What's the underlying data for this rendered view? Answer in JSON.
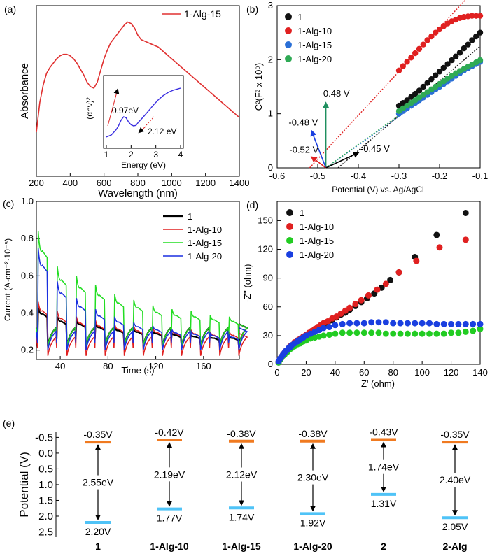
{
  "chart_data": [
    {
      "id": "a",
      "panel_label": "(a)",
      "type": "line",
      "xlabel": "Wavelength (nm)",
      "ylabel": "Absorbance",
      "xlim": [
        200,
        1400
      ],
      "xticks": [
        "200",
        "400",
        "600",
        "800",
        "1000",
        "1200",
        "1400"
      ],
      "legend": "top-right",
      "color": "#e03030",
      "series": [
        {
          "name": "1-Alg-15",
          "x": [
            200,
            220,
            240,
            260,
            280,
            300,
            320,
            340,
            360,
            380,
            400,
            420,
            440,
            460,
            480,
            500,
            520,
            540,
            560,
            580,
            600,
            620,
            640,
            660,
            680,
            700,
            720,
            740,
            760,
            780,
            800,
            820,
            840,
            860,
            880,
            900,
            920,
            940,
            960,
            980,
            1000,
            1020,
            1040,
            1060,
            1080,
            1100,
            1120,
            1140,
            1160,
            1180,
            1200,
            1220,
            1240,
            1260,
            1280,
            1300,
            1320,
            1340,
            1360,
            1380,
            1400
          ],
          "y": [
            0.3,
            0.5,
            0.62,
            0.7,
            0.74,
            0.77,
            0.8,
            0.82,
            0.83,
            0.83,
            0.82,
            0.8,
            0.77,
            0.73,
            0.69,
            0.64,
            0.61,
            0.6,
            0.64,
            0.72,
            0.8,
            0.86,
            0.91,
            0.94,
            0.97,
            1.0,
            1.03,
            1.05,
            1.04,
            1.01,
            0.96,
            0.93,
            0.92,
            0.91,
            0.9,
            0.89,
            0.88,
            0.86,
            0.84,
            0.82,
            0.8,
            0.78,
            0.76,
            0.74,
            0.72,
            0.7,
            0.68,
            0.66,
            0.64,
            0.62,
            0.6,
            0.58,
            0.56,
            0.54,
            0.52,
            0.5,
            0.48,
            0.46,
            0.44,
            0.42,
            0.4
          ]
        }
      ],
      "inset": {
        "xlabel": "Energy (eV)",
        "ylabel": "(αhν)²",
        "xlim": [
          1,
          4
        ],
        "xticks": [
          "1",
          "2",
          "3",
          "4"
        ],
        "annotations": [
          "0.97eV",
          "2.12 eV"
        ],
        "series": {
          "x": [
            1.0,
            1.2,
            1.4,
            1.5,
            1.6,
            1.7,
            1.8,
            1.9,
            2.0,
            2.1,
            2.2,
            2.3,
            2.5,
            2.7,
            2.9,
            3.1,
            3.3,
            3.5,
            3.7,
            4.0
          ],
          "y": [
            0.08,
            0.12,
            0.22,
            0.3,
            0.4,
            0.46,
            0.44,
            0.36,
            0.31,
            0.29,
            0.3,
            0.36,
            0.46,
            0.57,
            0.68,
            0.78,
            0.86,
            0.92,
            0.96,
            1.0
          ]
        }
      }
    },
    {
      "id": "b",
      "panel_label": "(b)",
      "type": "scatter",
      "xlabel": "Potential (V) vs. Ag/AgCl",
      "ylabel": "C²(F² x 10⁹)",
      "xlim": [
        -0.6,
        -0.1
      ],
      "ylim": [
        0,
        3
      ],
      "xticks": [
        "-0.6",
        "-0.5",
        "-0.4",
        "-0.3",
        "-0.2",
        "-0.1"
      ],
      "yticks": [
        "0",
        "1",
        "2",
        "3"
      ],
      "legend": "top-left",
      "annotations": [
        {
          "text": "-0.48 V",
          "color": "#1f8f5f"
        },
        {
          "text": "-0.48 V",
          "color": "#1a3fe0"
        },
        {
          "text": "-0.52 V",
          "color": "#e02020"
        },
        {
          "text": "-0.45 V",
          "color": "#000000"
        }
      ],
      "series": [
        {
          "name": "1",
          "color": "#111111",
          "intercept": -0.45,
          "x": [
            -0.3,
            -0.29,
            -0.28,
            -0.27,
            -0.26,
            -0.25,
            -0.24,
            -0.23,
            -0.22,
            -0.21,
            -0.2,
            -0.19,
            -0.18,
            -0.17,
            -0.16,
            -0.15,
            -0.14,
            -0.13,
            -0.12,
            -0.11,
            -0.1
          ],
          "y": [
            1.15,
            1.2,
            1.25,
            1.31,
            1.37,
            1.43,
            1.5,
            1.57,
            1.64,
            1.71,
            1.78,
            1.85,
            1.92,
            1.99,
            2.06,
            2.13,
            2.21,
            2.28,
            2.36,
            2.43,
            2.5
          ]
        },
        {
          "name": "1-Alg-10",
          "color": "#e02020",
          "intercept": -0.52,
          "x": [
            -0.3,
            -0.29,
            -0.28,
            -0.27,
            -0.26,
            -0.25,
            -0.24,
            -0.23,
            -0.22,
            -0.21,
            -0.2,
            -0.19,
            -0.18,
            -0.17,
            -0.16,
            -0.15,
            -0.14,
            -0.13,
            -0.12,
            -0.11,
            -0.1
          ],
          "y": [
            1.8,
            1.88,
            1.96,
            2.04,
            2.12,
            2.2,
            2.28,
            2.36,
            2.43,
            2.5,
            2.56,
            2.62,
            2.67,
            2.71,
            2.74,
            2.77,
            2.79,
            2.8,
            2.81,
            2.81,
            2.81
          ]
        },
        {
          "name": "1-Alg-15",
          "color": "#2a6fd6",
          "intercept": -0.48,
          "x": [
            -0.3,
            -0.29,
            -0.28,
            -0.27,
            -0.26,
            -0.25,
            -0.24,
            -0.23,
            -0.22,
            -0.21,
            -0.2,
            -0.19,
            -0.18,
            -0.17,
            -0.16,
            -0.15,
            -0.14,
            -0.13,
            -0.12,
            -0.11,
            -0.1
          ],
          "y": [
            1.0,
            1.05,
            1.1,
            1.15,
            1.2,
            1.25,
            1.3,
            1.35,
            1.4,
            1.45,
            1.5,
            1.55,
            1.6,
            1.65,
            1.7,
            1.75,
            1.8,
            1.84,
            1.88,
            1.92,
            1.96
          ]
        },
        {
          "name": "1-Alg-20",
          "color": "#2faa55",
          "intercept": -0.48,
          "x": [
            -0.3,
            -0.29,
            -0.28,
            -0.27,
            -0.26,
            -0.25,
            -0.24,
            -0.23,
            -0.22,
            -0.21,
            -0.2,
            -0.19,
            -0.18,
            -0.17,
            -0.16,
            -0.15,
            -0.14,
            -0.13,
            -0.12,
            -0.11,
            -0.1
          ],
          "y": [
            1.05,
            1.1,
            1.15,
            1.2,
            1.25,
            1.3,
            1.35,
            1.4,
            1.45,
            1.5,
            1.55,
            1.6,
            1.65,
            1.7,
            1.75,
            1.79,
            1.83,
            1.87,
            1.91,
            1.95,
            1.99
          ]
        }
      ]
    },
    {
      "id": "c",
      "panel_label": "(c)",
      "type": "line",
      "xlabel": "Time (s)",
      "ylabel": "Current (A·cm⁻²·10⁻⁵)",
      "xlim": [
        20,
        190
      ],
      "ylim": [
        0.15,
        1.0
      ],
      "xticks": [
        "40",
        "80",
        "120",
        "160"
      ],
      "yticks": [
        "0.2",
        "0.4",
        "0.6",
        "0.8",
        "1.0"
      ],
      "legend": "top-right",
      "period": 16,
      "on_duration": 8,
      "series": [
        {
          "name": "1",
          "color": "#000000",
          "width": 2.2,
          "off": 0.24,
          "on_peak": [
            0.43,
            0.38,
            0.36,
            0.34,
            0.32,
            0.31,
            0.3,
            0.29,
            0.28,
            0.27,
            0.27
          ]
        },
        {
          "name": "1-Alg-10",
          "color": "#e02020",
          "width": 1.5,
          "off": 0.19,
          "on_peak": [
            0.46,
            0.41,
            0.38,
            0.36,
            0.34,
            0.33,
            0.32,
            0.31,
            0.31,
            0.3,
            0.3
          ]
        },
        {
          "name": "1-Alg-15",
          "color": "#22dd22",
          "width": 1.5,
          "off": 0.24,
          "on_peak": [
            0.84,
            0.65,
            0.6,
            0.55,
            0.5,
            0.47,
            0.44,
            0.42,
            0.41,
            0.39,
            0.38
          ]
        },
        {
          "name": "1-Alg-20",
          "color": "#1a2fe0",
          "width": 1.5,
          "off": 0.22,
          "on_peak": [
            0.75,
            0.57,
            0.48,
            0.42,
            0.38,
            0.35,
            0.33,
            0.31,
            0.3,
            0.29,
            0.28
          ]
        }
      ]
    },
    {
      "id": "d",
      "panel_label": "(d)",
      "type": "scatter",
      "xlabel": "Z' (ohm)",
      "ylabel": "-Z'' (ohm)",
      "xlim": [
        0,
        140
      ],
      "ylim": [
        0,
        170
      ],
      "xticks": [
        "0",
        "20",
        "40",
        "60",
        "80",
        "100",
        "120",
        "140"
      ],
      "yticks": [
        "0",
        "30",
        "60",
        "90",
        "120",
        "150"
      ],
      "legend": "top-left",
      "series": [
        {
          "name": "1",
          "color": "#111111",
          "x": [
            1,
            2,
            3,
            4,
            5,
            6,
            7,
            8,
            9,
            10,
            12,
            14,
            16,
            18,
            20,
            22,
            24,
            26,
            28,
            30,
            32,
            35,
            38,
            41,
            44,
            47,
            50,
            54,
            58,
            62,
            67,
            72,
            78,
            84,
            95,
            110,
            130
          ],
          "y": [
            2,
            5,
            7,
            9,
            11,
            13,
            14,
            16,
            17,
            19,
            21,
            23,
            25,
            27,
            29,
            31,
            33,
            35,
            37,
            39,
            41,
            44,
            46,
            49,
            52,
            54,
            57,
            61,
            65,
            69,
            74,
            80,
            88,
            96,
            112,
            135,
            158
          ]
        },
        {
          "name": "1-Alg-10",
          "color": "#e02020",
          "x": [
            1,
            2,
            3,
            4,
            5,
            6,
            7,
            8,
            9,
            10,
            12,
            14,
            16,
            18,
            20,
            22,
            24,
            26,
            28,
            30,
            32,
            35,
            38,
            41,
            44,
            47,
            50,
            54,
            58,
            63,
            69,
            75,
            84,
            96,
            112,
            130
          ],
          "y": [
            3,
            6,
            8,
            10,
            12,
            14,
            15,
            17,
            19,
            20,
            23,
            25,
            27,
            29,
            31,
            33,
            35,
            37,
            39,
            41,
            43,
            45,
            48,
            50,
            53,
            56,
            59,
            63,
            67,
            72,
            78,
            84,
            96,
            108,
            122,
            130
          ]
        },
        {
          "name": "1-Alg-15",
          "color": "#22cc22",
          "x": [
            1,
            2,
            3,
            4,
            5,
            6,
            7,
            8,
            9,
            10,
            12,
            14,
            16,
            18,
            20,
            23,
            26,
            29,
            32,
            36,
            40,
            45,
            50,
            55,
            60,
            65,
            70,
            75,
            80,
            85,
            90,
            95,
            100,
            105,
            110,
            115,
            120,
            125,
            130,
            135,
            140
          ],
          "y": [
            2,
            5,
            7,
            9,
            10,
            12,
            13,
            15,
            16,
            17,
            19,
            21,
            22,
            24,
            25,
            27,
            28,
            29,
            30,
            31,
            32,
            33,
            33,
            33,
            33,
            33,
            33,
            32,
            32,
            32,
            32,
            32,
            32,
            32,
            32,
            32,
            33,
            33,
            34,
            35,
            37
          ]
        },
        {
          "name": "1-Alg-20",
          "color": "#1a3fe0",
          "x": [
            1,
            2,
            3,
            4,
            5,
            6,
            7,
            8,
            9,
            10,
            12,
            14,
            16,
            18,
            20,
            23,
            26,
            29,
            32,
            36,
            40,
            45,
            50,
            55,
            60,
            65,
            70,
            75,
            80,
            85,
            90,
            95,
            100,
            105,
            110,
            115,
            120,
            125,
            130,
            135,
            140
          ],
          "y": [
            3,
            6,
            8,
            10,
            12,
            14,
            15,
            17,
            18,
            20,
            22,
            24,
            26,
            28,
            30,
            32,
            34,
            36,
            38,
            39,
            41,
            42,
            43,
            43,
            43,
            44,
            44,
            44,
            43,
            43,
            43,
            43,
            43,
            43,
            42,
            42,
            42,
            42,
            42,
            42,
            42
          ]
        }
      ]
    },
    {
      "id": "e",
      "panel_label": "(e)",
      "type": "diagram",
      "ylabel": "Potential (V)",
      "ylim": [
        -0.7,
        2.75
      ],
      "yticks": [
        "-0.5",
        "0.0",
        "0.5",
        "1.0",
        "1.5",
        "2.0",
        "2.5"
      ],
      "band_colors": {
        "cb": "#f07a20",
        "vb": "#4fc3f7"
      },
      "samples": [
        {
          "name": "1",
          "cb_label": "-0.35V",
          "vb_label": "2.20V",
          "gap_label": "2.55eV",
          "cb": -0.35,
          "vb": 2.2
        },
        {
          "name": "1-Alg-10",
          "cb_label": "-0.42V",
          "vb_label": "1.77V",
          "gap_label": "2.19eV",
          "cb": -0.42,
          "vb": 1.77
        },
        {
          "name": "1-Alg-15",
          "cb_label": "-0.38V",
          "vb_label": "1.74V",
          "gap_label": "2.12eV",
          "cb": -0.38,
          "vb": 1.74
        },
        {
          "name": "1-Alg-20",
          "cb_label": "-0.38V",
          "vb_label": "1.92V",
          "gap_label": "2.30eV",
          "cb": -0.38,
          "vb": 1.92
        },
        {
          "name": "2",
          "cb_label": "-0.43V",
          "vb_label": "1.31V",
          "gap_label": "1.74eV",
          "cb": -0.43,
          "vb": 1.31
        },
        {
          "name": "2-Alg",
          "cb_label": "-0.35V",
          "vb_label": "2.05V",
          "gap_label": "2.40eV",
          "cb": -0.35,
          "vb": 2.05
        }
      ]
    }
  ]
}
